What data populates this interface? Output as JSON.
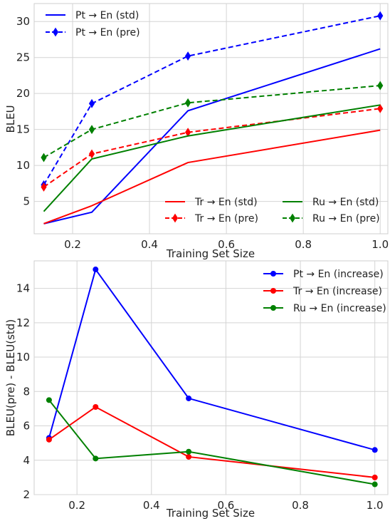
{
  "chart_data": [
    {
      "type": "line",
      "xlabel": "Training Set Size",
      "ylabel": "BLEU",
      "xlim": [
        0.1,
        1.02
      ],
      "ylim": [
        0.5,
        32.5
      ],
      "xticks": [
        0.2,
        0.4,
        0.6,
        0.8,
        1.0
      ],
      "yticks": [
        5,
        10,
        15,
        20,
        25,
        30
      ],
      "grid": true,
      "x": [
        0.125,
        0.25,
        0.5,
        1.0
      ],
      "series": [
        {
          "name": "Pt → En (std)",
          "color": "#0000ff",
          "style": "solid",
          "marker": "none",
          "values": [
            1.9,
            3.5,
            17.6,
            26.2
          ]
        },
        {
          "name": "Pt → En (pre)",
          "color": "#0000ff",
          "style": "dashed",
          "marker": "diamond",
          "values": [
            7.3,
            18.6,
            25.2,
            30.8
          ]
        },
        {
          "name": "Tr → En (std)",
          "color": "#ff0000",
          "style": "solid",
          "marker": "none",
          "values": [
            1.9,
            4.4,
            10.4,
            14.9
          ]
        },
        {
          "name": "Tr → En (pre)",
          "color": "#ff0000",
          "style": "dashed",
          "marker": "diamond",
          "values": [
            7.0,
            11.6,
            14.6,
            17.9
          ]
        },
        {
          "name": "Ru → En (std)",
          "color": "#008000",
          "style": "solid",
          "marker": "none",
          "values": [
            3.6,
            10.9,
            14.1,
            18.4
          ]
        },
        {
          "name": "Ru → En (pre)",
          "color": "#008000",
          "style": "dashed",
          "marker": "diamond",
          "values": [
            11.1,
            15.0,
            18.7,
            21.1
          ]
        }
      ],
      "legends": [
        {
          "placement": "top-left",
          "columns": 1,
          "entries": [
            0,
            1
          ]
        },
        {
          "placement": "lower-right",
          "columns": 2,
          "entries": [
            2,
            4,
            3,
            5
          ]
        }
      ]
    },
    {
      "type": "line",
      "xlabel": "Training Set Size",
      "ylabel": "BLEU(pre) - BLEU(std)",
      "xlim": [
        0.085,
        1.035
      ],
      "ylim": [
        2.0,
        15.6
      ],
      "xticks": [
        0.2,
        0.4,
        0.6,
        0.8,
        1.0
      ],
      "yticks": [
        2,
        4,
        6,
        8,
        10,
        12,
        14
      ],
      "grid": true,
      "x": [
        0.125,
        0.25,
        0.5,
        1.0
      ],
      "series": [
        {
          "name": "Pt → En (increase)",
          "color": "#0000ff",
          "style": "solid",
          "marker": "circle",
          "values": [
            5.3,
            15.1,
            7.6,
            4.6
          ]
        },
        {
          "name": "Tr → En (increase)",
          "color": "#ff0000",
          "style": "solid",
          "marker": "circle",
          "values": [
            5.2,
            7.1,
            4.2,
            3.0
          ]
        },
        {
          "name": "Ru → En (increase)",
          "color": "#008000",
          "style": "solid",
          "marker": "circle",
          "values": [
            7.5,
            4.1,
            4.5,
            2.6
          ]
        }
      ],
      "legends": [
        {
          "placement": "top-right",
          "columns": 1,
          "entries": [
            0,
            1,
            2
          ]
        }
      ]
    }
  ]
}
